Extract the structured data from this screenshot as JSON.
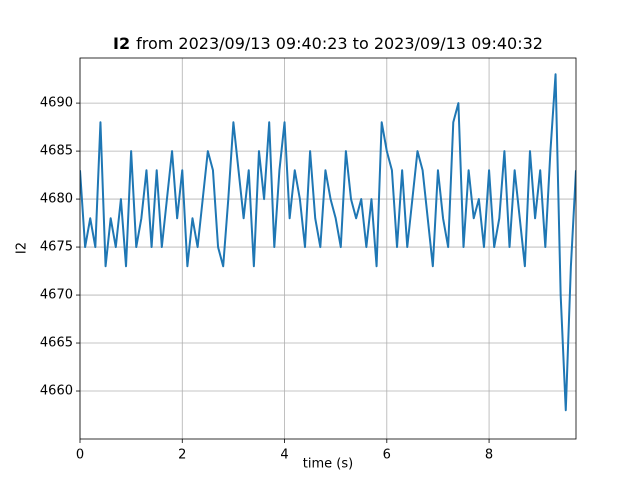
{
  "chart_data": {
    "type": "line",
    "title_bold": "I2",
    "title": "from 2023/09/13 09:40:23 to 2023/09/13 09:40:32",
    "xlabel": "time (s)",
    "ylabel": "I2",
    "x": [
      0,
      0.1,
      0.2,
      0.3,
      0.4,
      0.5,
      0.6,
      0.7,
      0.8,
      0.9,
      1,
      1.1,
      1.2,
      1.3,
      1.4,
      1.5,
      1.6,
      1.7,
      1.8,
      1.9,
      2,
      2.1,
      2.2,
      2.3,
      2.4,
      2.5,
      2.6,
      2.7,
      2.8,
      2.9,
      3,
      3.1,
      3.2,
      3.3,
      3.4,
      3.5,
      3.6,
      3.7,
      3.8,
      3.9,
      4,
      4.1,
      4.2,
      4.3,
      4.4,
      4.5,
      4.6,
      4.7,
      4.8,
      4.9,
      5,
      5.1,
      5.2,
      5.3,
      5.4,
      5.5,
      5.6,
      5.7,
      5.8,
      5.9,
      6,
      6.1,
      6.2,
      6.3,
      6.4,
      6.5,
      6.6,
      6.7,
      6.8,
      6.9,
      7,
      7.1,
      7.2,
      7.3,
      7.4,
      7.5,
      7.6,
      7.7,
      7.8,
      7.9,
      8,
      8.1,
      8.2,
      8.3,
      8.4,
      8.5,
      8.6,
      8.7,
      8.8,
      8.9,
      9,
      9.1,
      9.2,
      9.3,
      9.4,
      9.5,
      9.6,
      9.7
    ],
    "series": [
      {
        "name": "I2",
        "color": "#1f77b4",
        "values": [
          4683,
          4675,
          4678,
          4675,
          4688,
          4673,
          4678,
          4675,
          4680,
          4673,
          4685,
          4675,
          4678,
          4683,
          4675,
          4683,
          4675,
          4680,
          4685,
          4678,
          4683,
          4673,
          4678,
          4675,
          4680,
          4685,
          4683,
          4675,
          4673,
          4680,
          4688,
          4683,
          4678,
          4683,
          4673,
          4685,
          4680,
          4688,
          4675,
          4683,
          4688,
          4678,
          4683,
          4680,
          4675,
          4685,
          4678,
          4675,
          4683,
          4680,
          4678,
          4675,
          4685,
          4680,
          4678,
          4680,
          4675,
          4680,
          4673,
          4688,
          4685,
          4683,
          4675,
          4683,
          4675,
          4680,
          4685,
          4683,
          4678,
          4673,
          4683,
          4678,
          4675,
          4688,
          4690,
          4675,
          4683,
          4678,
          4680,
          4675,
          4683,
          4675,
          4678,
          4685,
          4675,
          4683,
          4678,
          4673,
          4685,
          4678,
          4683,
          4675,
          4685,
          4693,
          4670,
          4658,
          4673,
          4683
        ]
      }
    ],
    "xlim": [
      0,
      9.7
    ],
    "ylim": [
      4655,
      4694.7
    ],
    "xticks": [
      0,
      2,
      4,
      6,
      8
    ],
    "yticks": [
      4660,
      4665,
      4670,
      4675,
      4680,
      4685,
      4690
    ],
    "grid": true
  }
}
